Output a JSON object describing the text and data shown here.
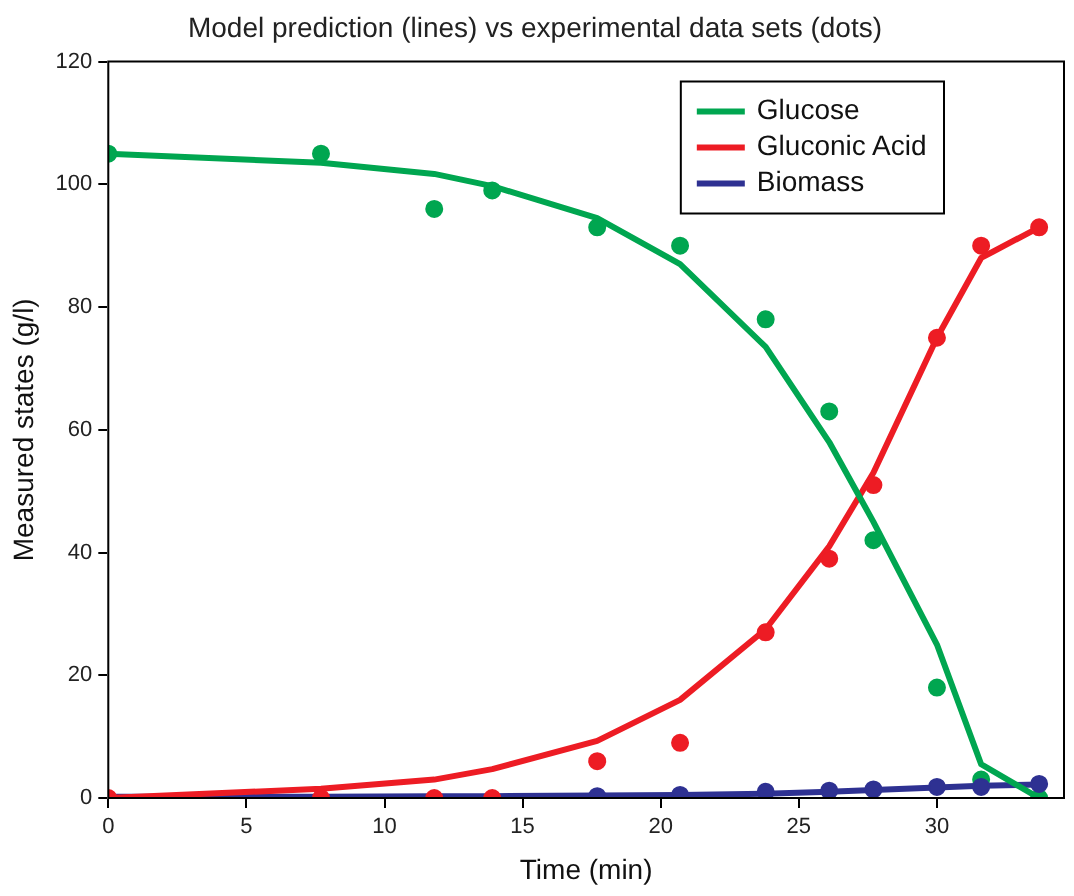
{
  "chart_data": {
    "type": "line",
    "title": "Model prediction (lines) vs experimental data sets (dots)",
    "xlabel": "Time (min)",
    "ylabel": "Measured states (g/l)",
    "x": [
      0,
      7.7,
      11.8,
      13.9,
      17.7,
      20.7,
      23.8,
      26.1,
      27.7,
      30,
      31.6,
      33.7
    ],
    "xlim": [
      0,
      34.6
    ],
    "xticks": [
      0,
      5,
      10,
      15,
      20,
      25,
      30
    ],
    "ylim": [
      0,
      120
    ],
    "yticks": [
      0,
      20,
      40,
      60,
      80,
      100,
      120
    ],
    "grid": false,
    "legend": "top right",
    "series": [
      {
        "name": "Glucose",
        "marker": "none",
        "color": "#00a650",
        "values": [
          105,
          103.5,
          101.7,
          99.7,
          94.5,
          87,
          73.5,
          58,
          45,
          25,
          5.5,
          0
        ]
      },
      {
        "name": "Gluconic Acid",
        "marker": "none",
        "color": "#ed1c24",
        "values": [
          0,
          1.5,
          3,
          4.7,
          9.3,
          16,
          27.5,
          41,
          53,
          75,
          88,
          93
        ]
      },
      {
        "name": "Biomass",
        "marker": "none",
        "color": "#2e3192",
        "values": [
          0.2,
          0.2,
          0.3,
          0.3,
          0.4,
          0.5,
          0.7,
          1,
          1.3,
          1.7,
          2,
          2.2
        ]
      },
      {
        "type": "scatter",
        "marker": "circle",
        "color": "#00a650",
        "values": [
          105,
          105,
          96,
          99,
          93,
          90,
          78,
          63,
          42,
          18,
          3,
          0
        ]
      },
      {
        "type": "scatter",
        "marker": "circle",
        "color": "#ed1c24",
        "values": [
          0,
          0,
          0,
          0,
          6,
          9,
          27,
          39,
          51,
          75,
          90,
          93
        ]
      },
      {
        "type": "scatter",
        "marker": "circle",
        "color": "#2e3192",
        "values": [
          null,
          null,
          null,
          null,
          0.3,
          0.5,
          1,
          1.2,
          1.4,
          1.8,
          1.8,
          2.3
        ]
      }
    ]
  }
}
